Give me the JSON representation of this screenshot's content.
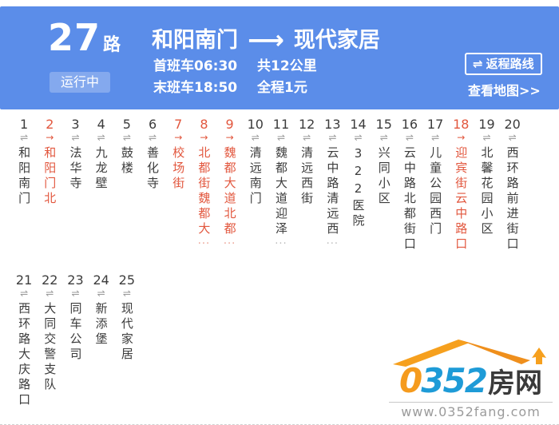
{
  "header": {
    "route_number": "27",
    "route_suffix": "路",
    "status": "运行中",
    "origin": "和阳南门",
    "destination": "现代家居",
    "first_bus": "首班车06:30",
    "last_bus": "末班车18:50",
    "distance": "共12公里",
    "fare": "全程1元",
    "return_button": "返程路线",
    "map_link": "查看地图>>"
  },
  "icons": {
    "transfer": "⇌",
    "oneway": "→",
    "long_arrow": "⟶"
  },
  "colors": {
    "header_bg": "#5b8de9",
    "badge_bg": "#7fa7ef",
    "highlight_red": "#e2573e",
    "stop_text": "#3c3c3c",
    "icon_gray": "#999999",
    "logo_blue": "#1e9bd7",
    "logo_orange": "#f59b1e"
  },
  "stops": [
    {
      "number": "1",
      "name": "和阳南门",
      "highlight": false,
      "truncated": false
    },
    {
      "number": "2",
      "name": "和阳门北",
      "highlight": true,
      "truncated": false
    },
    {
      "number": "3",
      "name": "法华寺",
      "highlight": false,
      "truncated": false
    },
    {
      "number": "4",
      "name": "九龙壁",
      "highlight": false,
      "truncated": false
    },
    {
      "number": "5",
      "name": "鼓楼",
      "highlight": false,
      "truncated": false
    },
    {
      "number": "6",
      "name": "善化寺",
      "highlight": false,
      "truncated": false
    },
    {
      "number": "7",
      "name": "校场街",
      "highlight": true,
      "truncated": false
    },
    {
      "number": "8",
      "name": "北都街魏都大",
      "highlight": true,
      "truncated": true
    },
    {
      "number": "9",
      "name": "魏都大道北都",
      "highlight": true,
      "truncated": true
    },
    {
      "number": "10",
      "name": "清远南门",
      "highlight": false,
      "truncated": false
    },
    {
      "number": "11",
      "name": "魏都大道迎泽",
      "highlight": false,
      "truncated": true
    },
    {
      "number": "12",
      "name": "清远西街",
      "highlight": false,
      "truncated": false
    },
    {
      "number": "13",
      "name": "云中路清远西",
      "highlight": false,
      "truncated": true
    },
    {
      "number": "14",
      "name": "322医院",
      "highlight": false,
      "truncated": false
    },
    {
      "number": "15",
      "name": "兴同小区",
      "highlight": false,
      "truncated": false
    },
    {
      "number": "16",
      "name": "云中路北都街口",
      "highlight": false,
      "truncated": false
    },
    {
      "number": "17",
      "name": "儿童公园西门",
      "highlight": false,
      "truncated": false
    },
    {
      "number": "18",
      "name": "迎宾街云中路口",
      "highlight": true,
      "truncated": false
    },
    {
      "number": "19",
      "name": "北馨花园小区",
      "highlight": false,
      "truncated": false
    },
    {
      "number": "20",
      "name": "西环路前进街口",
      "highlight": false,
      "truncated": false
    },
    {
      "number": "21",
      "name": "西环路大庆路口",
      "highlight": false,
      "truncated": false
    },
    {
      "number": "22",
      "name": "大同交警支队",
      "highlight": false,
      "truncated": false
    },
    {
      "number": "23",
      "name": "同车公司",
      "highlight": false,
      "truncated": false
    },
    {
      "number": "24",
      "name": "新添堡",
      "highlight": false,
      "truncated": false
    },
    {
      "number": "25",
      "name": "现代家居",
      "highlight": false,
      "truncated": false
    }
  ],
  "footer": {
    "logo_number": "0352",
    "logo_suffix": "房网",
    "website": "www.0352fang.com"
  }
}
